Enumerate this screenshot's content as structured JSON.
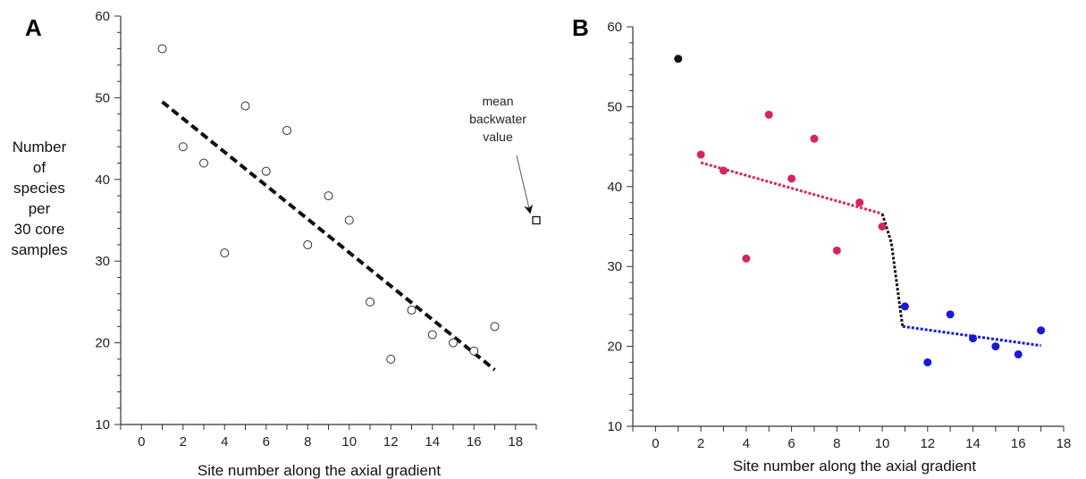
{
  "panels": [
    {
      "letter": "A",
      "xlabel": "Site number along the axial gradient",
      "ylabel_lines": [
        "Number",
        "of",
        "species",
        "per",
        "30 core",
        "samples"
      ]
    },
    {
      "letter": "B",
      "xlabel": "Site number along the axial gradient",
      "ylabel_lines": []
    }
  ],
  "colors": {
    "axis": "#333333",
    "open_marker": "#333333",
    "fit_A": "#111111",
    "outlier_B": "#111111",
    "upstream_B": "#d6245f",
    "downstream_B": "#1a1ad6",
    "step_B": "#111111"
  },
  "chart_data": [
    {
      "type": "scatter",
      "panel": "A",
      "xlabel": "Site number along the axial gradient",
      "ylabel": "Number of species per 30 core samples",
      "xlim": [
        -1,
        19
      ],
      "ylim": [
        10,
        60
      ],
      "xticks": [
        0,
        2,
        4,
        6,
        8,
        10,
        12,
        14,
        16,
        18
      ],
      "yticks": [
        10,
        20,
        30,
        40,
        50,
        60
      ],
      "grid": false,
      "series": [
        {
          "marker": "open-circle",
          "x": [
            1,
            2,
            3,
            4,
            5,
            6,
            7,
            8,
            9,
            10,
            11,
            12,
            13,
            14,
            15,
            16,
            17
          ],
          "y": [
            56,
            44,
            42,
            31,
            49,
            41,
            46,
            32,
            38,
            35,
            25,
            18,
            24,
            21,
            20,
            19,
            22
          ]
        },
        {
          "marker": "open-square",
          "x": [
            19
          ],
          "y": [
            35
          ]
        }
      ],
      "fit_line": {
        "style": "dashed",
        "x": [
          1,
          17
        ],
        "y": [
          49.5,
          16.7
        ]
      },
      "annotation": {
        "lines": [
          "mean",
          "backwater",
          "value"
        ],
        "target": [
          19,
          35
        ]
      }
    },
    {
      "type": "scatter",
      "panel": "B",
      "xlabel": "Site number along the axial gradient",
      "ylabel": "",
      "xlim": [
        -1,
        18
      ],
      "ylim": [
        10,
        60
      ],
      "xticks": [
        0,
        2,
        4,
        6,
        8,
        10,
        12,
        14,
        16,
        18
      ],
      "yticks": [
        10,
        20,
        30,
        40,
        50,
        60
      ],
      "grid": false,
      "series": [
        {
          "group": "outlier",
          "marker": "filled-circle",
          "x": [
            1
          ],
          "y": [
            56
          ]
        },
        {
          "group": "upstream",
          "marker": "filled-circle",
          "x": [
            2,
            3,
            4,
            5,
            6,
            7,
            8,
            9,
            10
          ],
          "y": [
            44,
            42,
            31,
            49,
            41,
            46,
            32,
            38,
            35
          ]
        },
        {
          "group": "downstream",
          "marker": "filled-circle",
          "x": [
            11,
            12,
            13,
            14,
            15,
            16,
            17
          ],
          "y": [
            25,
            18,
            24,
            21,
            20,
            19,
            22
          ]
        }
      ],
      "fit_lines": [
        {
          "group": "upstream",
          "style": "dotted",
          "x": [
            2,
            10
          ],
          "y": [
            43,
            36.6
          ]
        },
        {
          "group": "step",
          "style": "dotted",
          "x": [
            10,
            10.4,
            10.8,
            10.9
          ],
          "y": [
            36.6,
            33,
            24.5,
            22.5
          ]
        },
        {
          "group": "downstream",
          "style": "dotted",
          "x": [
            10.9,
            17
          ],
          "y": [
            22.5,
            20.1
          ]
        }
      ]
    }
  ]
}
